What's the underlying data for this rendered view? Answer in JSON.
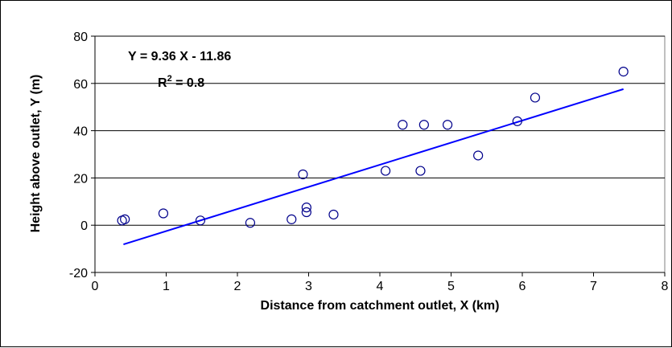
{
  "chart_data": {
    "type": "scatter",
    "title": "",
    "xlabel": "Distance from catchment outlet, X (km)",
    "ylabel": "Height above outlet, Y (m)",
    "xlim": [
      0,
      8
    ],
    "ylim": [
      -20,
      80
    ],
    "x_ticks": [
      "0",
      "1",
      "2",
      "3",
      "4",
      "5",
      "6",
      "7",
      "8"
    ],
    "y_ticks": [
      "-20",
      "0",
      "20",
      "40",
      "60",
      "80"
    ],
    "grid": {
      "horizontal": true,
      "vertical": false
    },
    "legend": "none",
    "annotations": {
      "equation": "Y = 9.36 X - 11.86",
      "r2_label": "R",
      "r2_superscript": "2",
      "r2_value": " = 0.8"
    },
    "series": [
      {
        "marker": "open-circle",
        "points": [
          [
            0.38,
            2
          ],
          [
            0.42,
            2.5
          ],
          [
            0.96,
            5
          ],
          [
            1.48,
            2
          ],
          [
            2.18,
            1
          ],
          [
            2.76,
            2.5
          ],
          [
            2.92,
            21.5
          ],
          [
            2.97,
            5.5
          ],
          [
            2.97,
            7.5
          ],
          [
            3.35,
            4.5
          ],
          [
            4.08,
            23
          ],
          [
            4.32,
            42.5
          ],
          [
            4.57,
            23
          ],
          [
            4.62,
            42.5
          ],
          [
            4.95,
            42.5
          ],
          [
            5.38,
            29.5
          ],
          [
            5.93,
            44
          ],
          [
            6.18,
            54
          ],
          [
            7.42,
            65
          ]
        ]
      }
    ],
    "trendline": {
      "slope": 9.36,
      "intercept": -11.86,
      "x_range": [
        0.4,
        7.42
      ]
    },
    "colors": {
      "markers": "#00008b",
      "trendline": "#0000ff",
      "grid": "#000000"
    }
  }
}
